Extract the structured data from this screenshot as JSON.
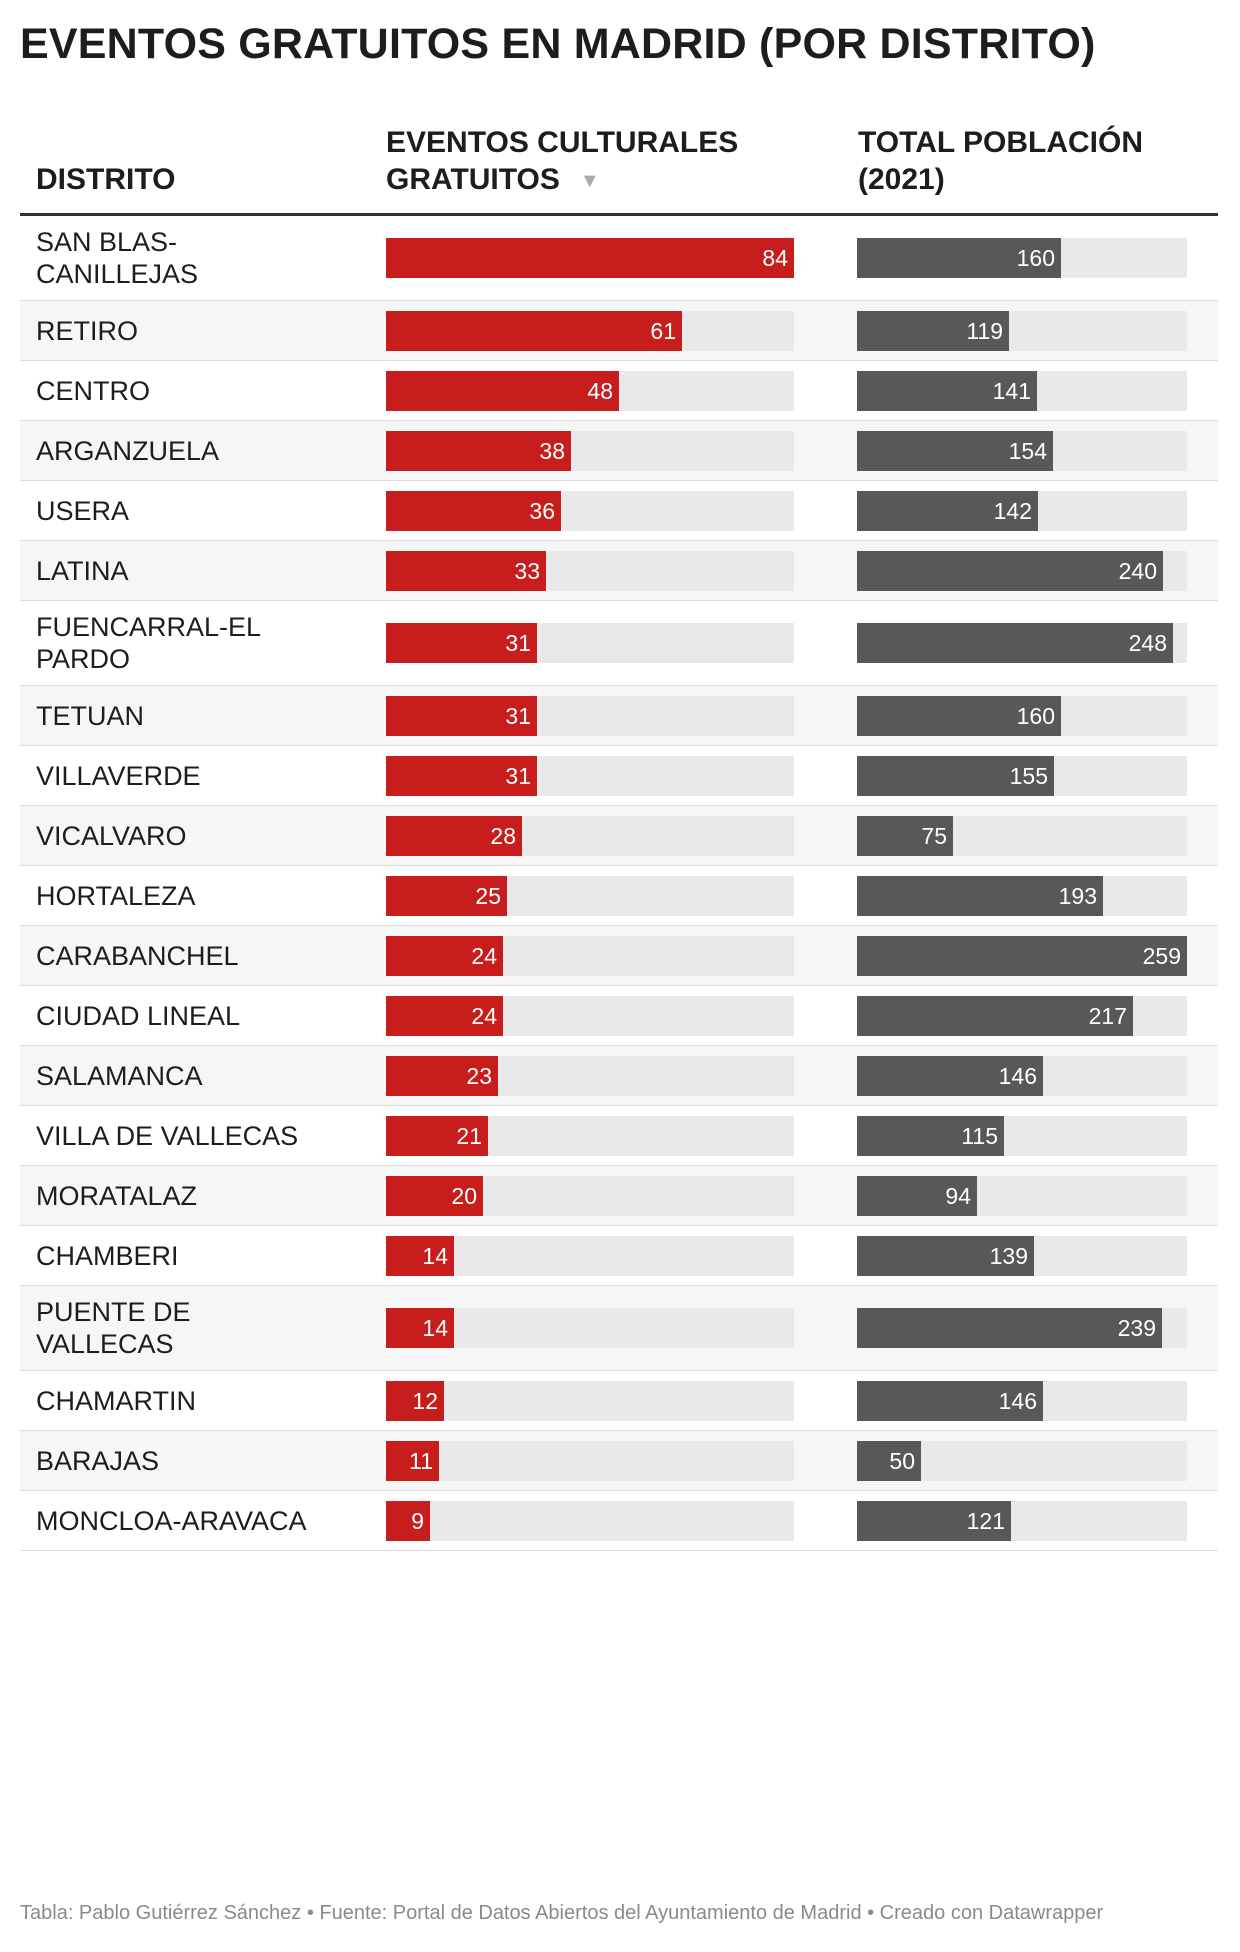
{
  "title": "EVENTOS GRATUITOS EN MADRID (POR DISTRITO)",
  "headers": {
    "district": "DISTRITO",
    "events_line1": "EVENTOS CULTURALES",
    "events_line2": "GRATUITOS",
    "sort_icon": "▼",
    "population_line1": "TOTAL POBLACIÓN",
    "population_line2": "(2021)"
  },
  "footer": "Tabla: Pablo Gutiérrez Sánchez • Fuente: Portal de Datos Abiertos del Ayuntamiento de Madrid • Creado con Datawrapper",
  "colors": {
    "events_bar": "#c71e1d",
    "population_bar": "#585858",
    "bar_track": "#e9e9e9"
  },
  "chart_data": {
    "type": "table",
    "columns": [
      "DISTRITO",
      "EVENTOS CULTURALES GRATUITOS",
      "TOTAL POBLACIÓN (2021)"
    ],
    "events_max": 84,
    "population_max": 259,
    "rows": [
      {
        "district": [
          "SAN BLAS-",
          "CANILLEJAS"
        ],
        "events": 84,
        "population": 160
      },
      {
        "district": [
          "RETIRO"
        ],
        "events": 61,
        "population": 119
      },
      {
        "district": [
          "CENTRO"
        ],
        "events": 48,
        "population": 141
      },
      {
        "district": [
          "ARGANZUELA"
        ],
        "events": 38,
        "population": 154
      },
      {
        "district": [
          "USERA"
        ],
        "events": 36,
        "population": 142
      },
      {
        "district": [
          "LATINA"
        ],
        "events": 33,
        "population": 240
      },
      {
        "district": [
          "FUENCARRAL-EL",
          "PARDO"
        ],
        "events": 31,
        "population": 248
      },
      {
        "district": [
          "TETUAN"
        ],
        "events": 31,
        "population": 160
      },
      {
        "district": [
          "VILLAVERDE"
        ],
        "events": 31,
        "population": 155
      },
      {
        "district": [
          "VICALVARO"
        ],
        "events": 28,
        "population": 75
      },
      {
        "district": [
          "HORTALEZA"
        ],
        "events": 25,
        "population": 193
      },
      {
        "district": [
          "CARABANCHEL"
        ],
        "events": 24,
        "population": 259
      },
      {
        "district": [
          "CIUDAD LINEAL"
        ],
        "events": 24,
        "population": 217
      },
      {
        "district": [
          "SALAMANCA"
        ],
        "events": 23,
        "population": 146
      },
      {
        "district": [
          "VILLA DE VALLECAS"
        ],
        "events": 21,
        "population": 115
      },
      {
        "district": [
          "MORATALAZ"
        ],
        "events": 20,
        "population": 94
      },
      {
        "district": [
          "CHAMBERI"
        ],
        "events": 14,
        "population": 139
      },
      {
        "district": [
          "PUENTE DE",
          "VALLECAS"
        ],
        "events": 14,
        "population": 239
      },
      {
        "district": [
          "CHAMARTIN"
        ],
        "events": 12,
        "population": 146
      },
      {
        "district": [
          "BARAJAS"
        ],
        "events": 11,
        "population": 50
      },
      {
        "district": [
          "MONCLOA-ARAVACA"
        ],
        "events": 9,
        "population": 121
      }
    ]
  }
}
